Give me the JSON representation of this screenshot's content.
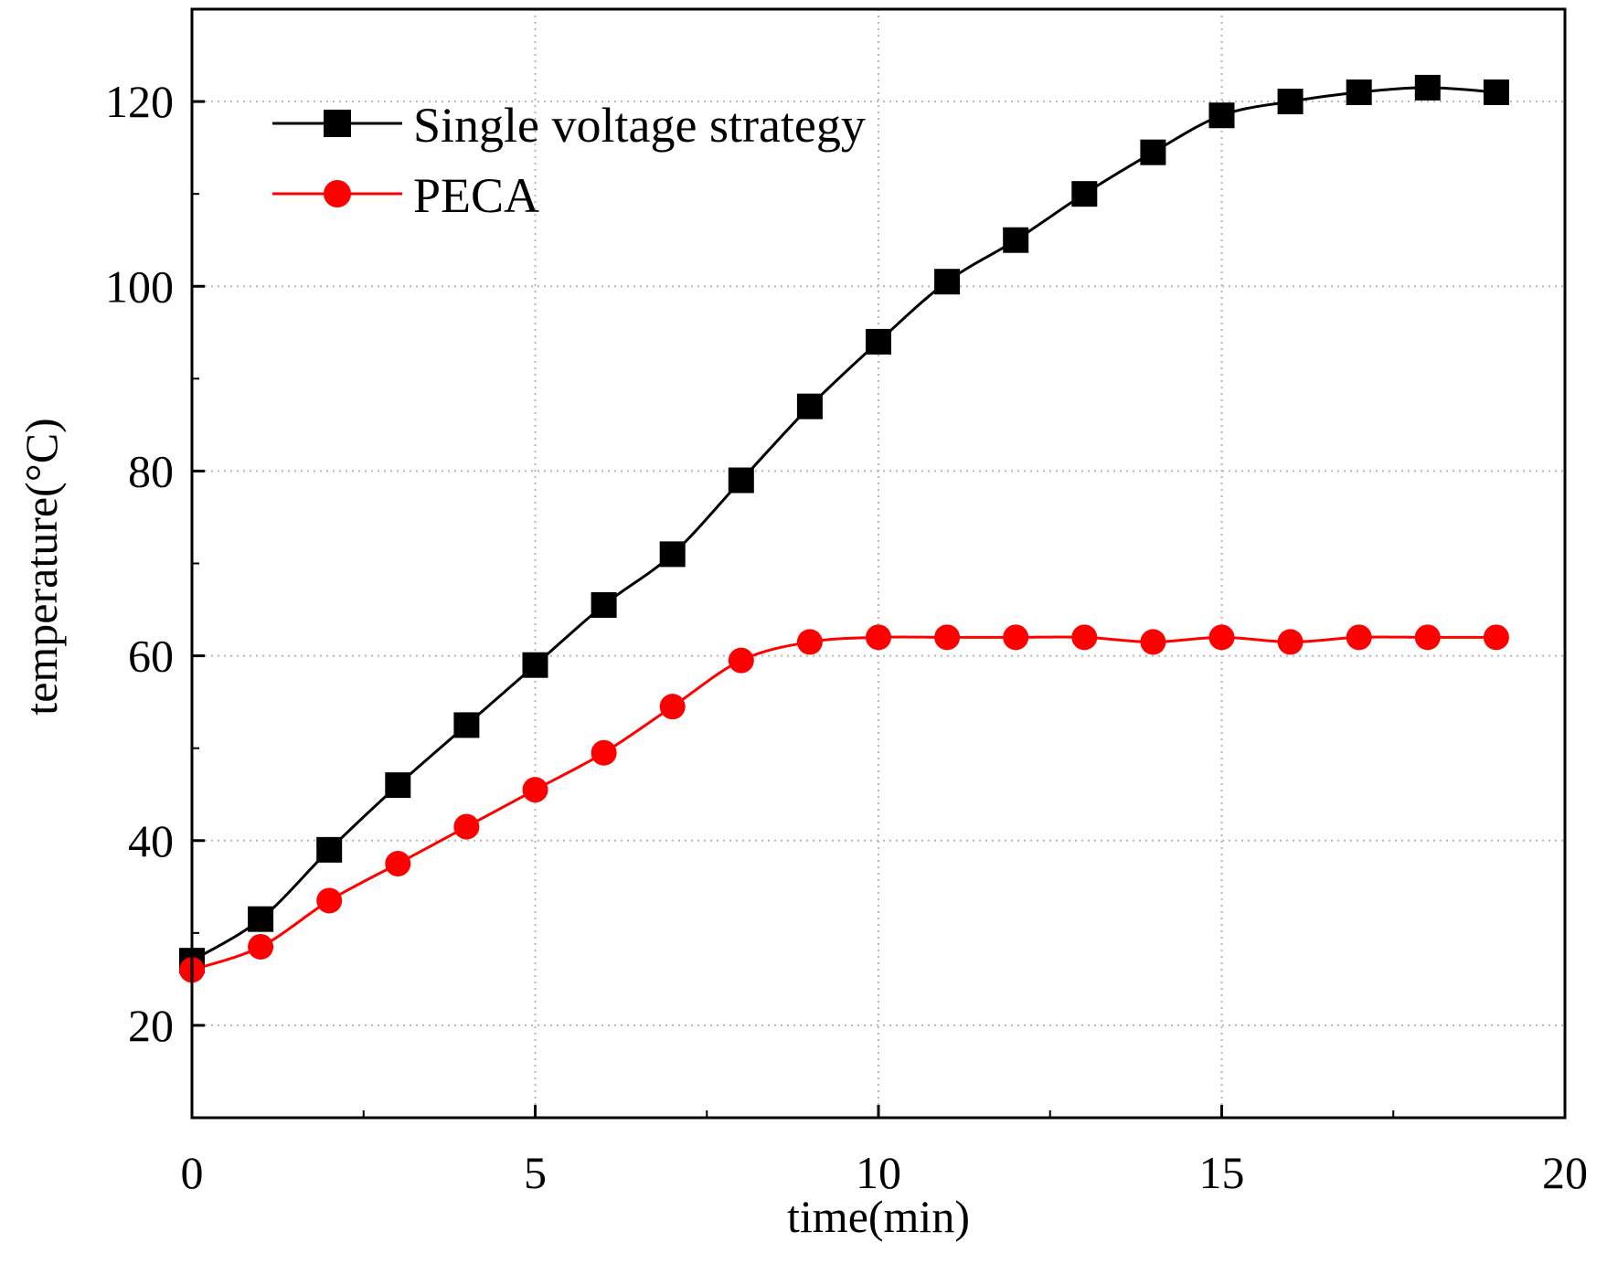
{
  "chart_data": {
    "type": "line",
    "title": "",
    "xlabel": "time(min)",
    "ylabel": "temperature(°C)",
    "xlim": [
      0,
      20
    ],
    "ylim": [
      10,
      130
    ],
    "xticks": [
      0,
      5,
      10,
      15,
      20
    ],
    "yticks": [
      20,
      40,
      60,
      80,
      100,
      120
    ],
    "grid": true,
    "legend_position": "top-left",
    "x": [
      0,
      1,
      2,
      3,
      4,
      5,
      6,
      7,
      8,
      9,
      10,
      11,
      12,
      13,
      14,
      15,
      16,
      17,
      18,
      19
    ],
    "series": [
      {
        "name": "Single voltage strategy",
        "color": "#000000",
        "marker": "square",
        "values": [
          27,
          31.5,
          39,
          46,
          52.5,
          59,
          65.5,
          71,
          79,
          87,
          94,
          100.5,
          105,
          110,
          114.5,
          118.5,
          120,
          121,
          121.5,
          121
        ]
      },
      {
        "name": "PECA",
        "color": "#ff0000",
        "marker": "circle",
        "values": [
          26,
          28.5,
          33.5,
          37.5,
          41.5,
          45.5,
          49.5,
          54.5,
          59.5,
          61.5,
          62,
          62,
          62,
          62,
          61.5,
          62,
          61.5,
          62,
          62,
          62
        ]
      }
    ]
  }
}
